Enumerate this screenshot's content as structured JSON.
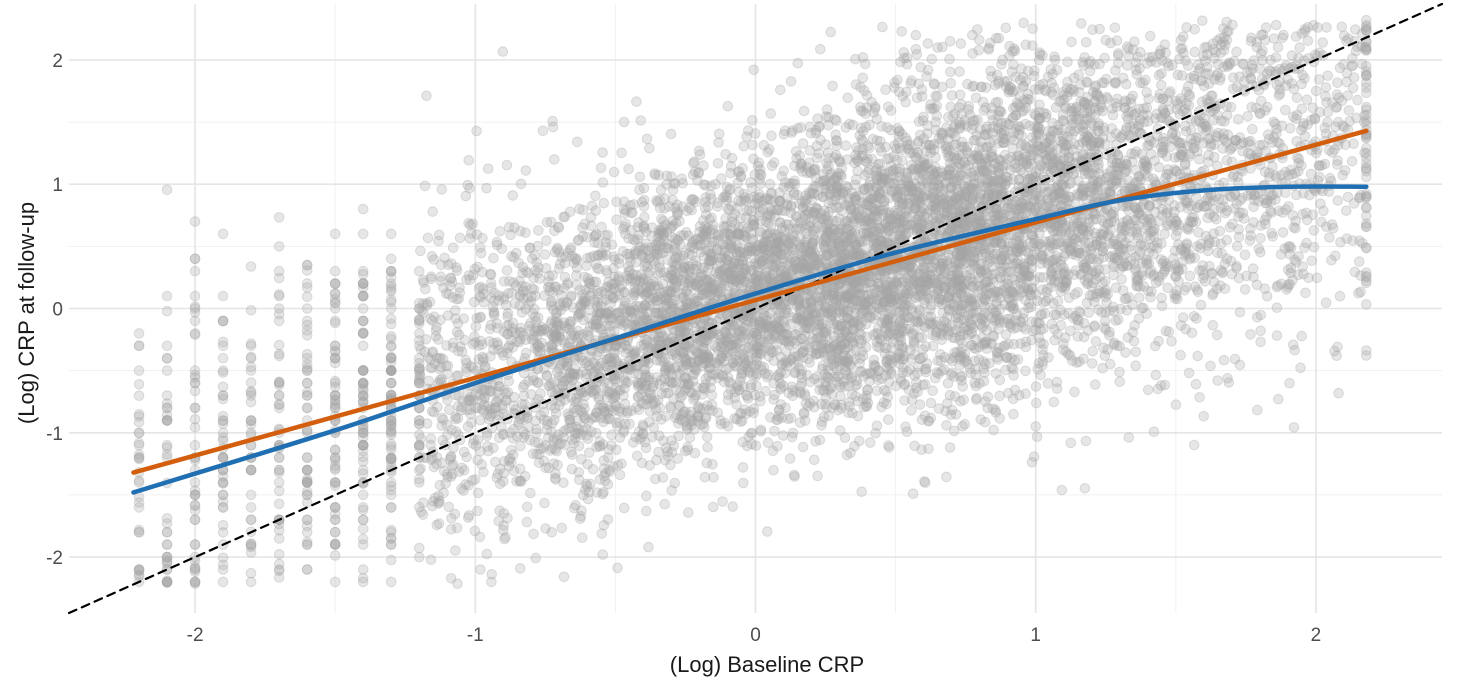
{
  "chart_data": {
    "type": "scatter",
    "xlabel": "(Log) Baseline CRP",
    "ylabel": "(Log) CRP at follow-up",
    "xlim": [
      -2.45,
      2.45
    ],
    "ylim": [
      -2.45,
      2.45
    ],
    "x_ticks": [
      -2,
      -1,
      0,
      1,
      2
    ],
    "y_ticks": [
      -2,
      -1,
      0,
      1,
      2
    ],
    "x_tick_labels": [
      "-2",
      "-1",
      "0",
      "1",
      "2"
    ],
    "y_tick_labels": [
      "-2",
      "-1",
      "0",
      "1",
      "2"
    ],
    "grid": true,
    "legend": "none",
    "point_color": "#a6a6a6",
    "point_count_approx": 9000,
    "point_range": {
      "x": [
        -2.22,
        2.18
      ],
      "y": [
        -2.22,
        2.32
      ]
    },
    "series": [
      {
        "type": "line",
        "style": "dashed",
        "color": "#000000",
        "x": [
          -2.45,
          2.45
        ],
        "y": [
          -2.45,
          2.45
        ]
      },
      {
        "type": "line",
        "color": "#d35f0e",
        "x": [
          -2.22,
          2.18
        ],
        "y": [
          -1.32,
          1.43
        ]
      },
      {
        "type": "line",
        "color": "#1f6fb2",
        "x": [
          -2.22,
          -1.5,
          -1.0,
          -0.5,
          0.0,
          0.5,
          1.0,
          1.3,
          1.6,
          1.9,
          2.18
        ],
        "y": [
          -1.48,
          -0.98,
          -0.6,
          -0.24,
          0.12,
          0.45,
          0.72,
          0.87,
          0.95,
          0.98,
          0.98
        ]
      }
    ]
  }
}
